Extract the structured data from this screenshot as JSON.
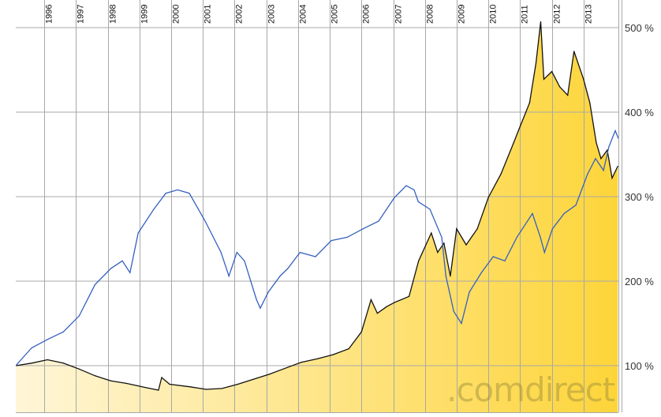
{
  "chart_data": {
    "type": "line",
    "title": "",
    "xlabel": "",
    "ylabel": "",
    "x_ticks": [
      "1996",
      "1997",
      "1998",
      "1999",
      "2000",
      "2001",
      "2002",
      "2003",
      "2004",
      "2005",
      "2006",
      "2007",
      "2008",
      "2009",
      "2010",
      "2011",
      "2012",
      "2013"
    ],
    "y_ticks": [
      "100 %",
      "200 %",
      "300 %",
      "400 %",
      "500 %"
    ],
    "y_tick_values": [
      100,
      200,
      300,
      400,
      500
    ],
    "xlim": [
      1995.1,
      2014.1
    ],
    "ylim": [
      45,
      530
    ],
    "grid": true,
    "watermark": ".comdirect",
    "colors": {
      "filled_series_line": "#111111",
      "fill_left": "#fff6d8",
      "fill_right": "#fdd53a",
      "line_series": "#3560c0",
      "grid": "#a8a8a8"
    },
    "series": [
      {
        "style": "area",
        "x": [
          1995.1,
          1995.6,
          1996.1,
          1996.6,
          1997.1,
          1997.6,
          1998.1,
          1998.6,
          1999.2,
          1999.6,
          1999.7,
          1999.95,
          2000.6,
          2001.1,
          2001.6,
          2002.1,
          2002.6,
          2003.1,
          2003.6,
          2004.1,
          2004.6,
          2005.1,
          2005.6,
          2006.0,
          2006.3,
          2006.5,
          2006.8,
          2007.05,
          2007.5,
          2007.8,
          2008.2,
          2008.4,
          2008.6,
          2008.8,
          2009.0,
          2009.3,
          2009.65,
          2010.0,
          2010.4,
          2010.8,
          2011.0,
          2011.3,
          2011.5,
          2011.65,
          2011.75,
          2012.0,
          2012.25,
          2012.5,
          2012.7,
          2013.0,
          2013.2,
          2013.4,
          2013.55,
          2013.75,
          2013.9,
          2014.08
        ],
        "values": [
          100,
          103,
          107,
          103,
          96,
          88,
          82,
          79,
          74,
          71,
          86,
          78,
          75,
          72,
          73,
          78,
          84,
          90,
          97,
          104,
          108,
          113,
          120,
          140,
          178,
          162,
          170,
          175,
          182,
          224,
          257,
          234,
          245,
          206,
          262,
          243,
          262,
          299,
          327,
          364,
          383,
          411,
          458,
          507,
          439,
          448,
          430,
          420,
          472,
          439,
          411,
          364,
          345,
          355,
          322,
          336
        ]
      },
      {
        "style": "line",
        "x": [
          1995.1,
          1995.6,
          1996.1,
          1996.6,
          1997.1,
          1997.6,
          1998.1,
          1998.46,
          1998.7,
          1998.96,
          1999.45,
          1999.83,
          2000.2,
          2000.57,
          2001.07,
          2001.57,
          2001.82,
          2002.07,
          2002.31,
          2002.69,
          2002.81,
          2003.06,
          2003.43,
          2003.68,
          2004.06,
          2004.55,
          2005.05,
          2005.55,
          2006.05,
          2006.54,
          2007.04,
          2007.41,
          2007.66,
          2007.79,
          2008.16,
          2008.53,
          2008.66,
          2008.91,
          2009.15,
          2009.4,
          2009.78,
          2010.15,
          2010.52,
          2010.9,
          2011.39,
          2011.64,
          2011.77,
          2012.02,
          2012.39,
          2012.76,
          2013.13,
          2013.38,
          2013.63,
          2013.8,
          2014.0,
          2014.1
        ],
        "values": [
          100,
          121,
          131,
          140,
          159,
          196,
          215,
          224,
          210,
          257,
          285,
          304,
          308,
          304,
          271,
          234,
          206,
          234,
          224,
          178,
          168,
          187,
          206,
          215,
          234,
          229,
          248,
          252,
          262,
          271,
          299,
          313,
          308,
          294,
          285,
          252,
          206,
          164,
          150,
          187,
          210,
          229,
          224,
          252,
          280,
          252,
          234,
          262,
          280,
          290,
          327,
          345,
          331,
          359,
          378,
          369
        ]
      }
    ]
  }
}
